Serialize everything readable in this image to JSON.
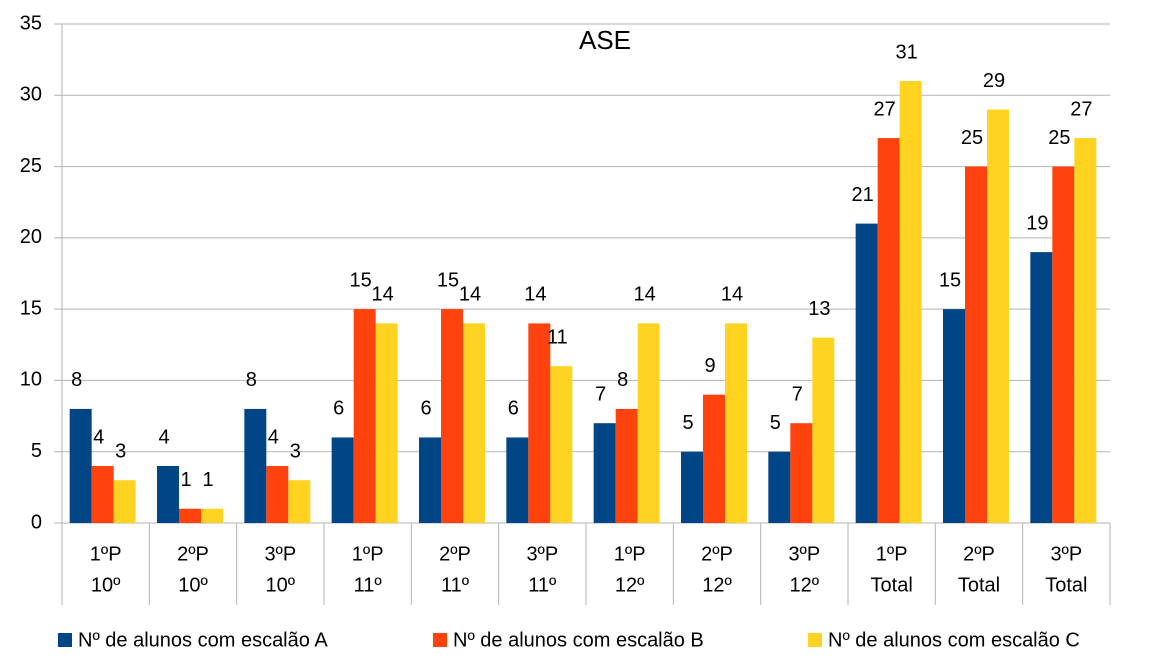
{
  "chart_data": {
    "type": "bar",
    "title": "ASE",
    "categories": [
      [
        "1ºP",
        "10º"
      ],
      [
        "2ºP",
        "10º"
      ],
      [
        "3ºP",
        "10º"
      ],
      [
        "1ºP",
        "11º"
      ],
      [
        "2ºP",
        "11º"
      ],
      [
        "3ºP",
        "11º"
      ],
      [
        "1ºP",
        "12º"
      ],
      [
        "2ºP",
        "12º"
      ],
      [
        "3ºP",
        "12º"
      ],
      [
        "1ºP",
        "Total"
      ],
      [
        "2ºP",
        "Total"
      ],
      [
        "3ºP",
        "Total"
      ]
    ],
    "series": [
      {
        "name": "Nº de alunos com escalão A",
        "color": "#004586",
        "values": [
          8,
          4,
          8,
          6,
          6,
          6,
          7,
          5,
          5,
          21,
          15,
          19
        ]
      },
      {
        "name": "Nº de alunos com escalão B",
        "color": "#ff420e",
        "values": [
          4,
          1,
          4,
          15,
          15,
          14,
          8,
          9,
          7,
          27,
          25,
          25
        ]
      },
      {
        "name": "Nº de alunos com escalão C",
        "color": "#ffd320",
        "values": [
          3,
          1,
          3,
          14,
          14,
          11,
          14,
          14,
          13,
          31,
          29,
          27
        ]
      }
    ],
    "ylim": [
      0,
      35
    ],
    "yticks": [
      0,
      5,
      10,
      15,
      20,
      25,
      30,
      35
    ],
    "grid": true,
    "legend": "bottom"
  }
}
